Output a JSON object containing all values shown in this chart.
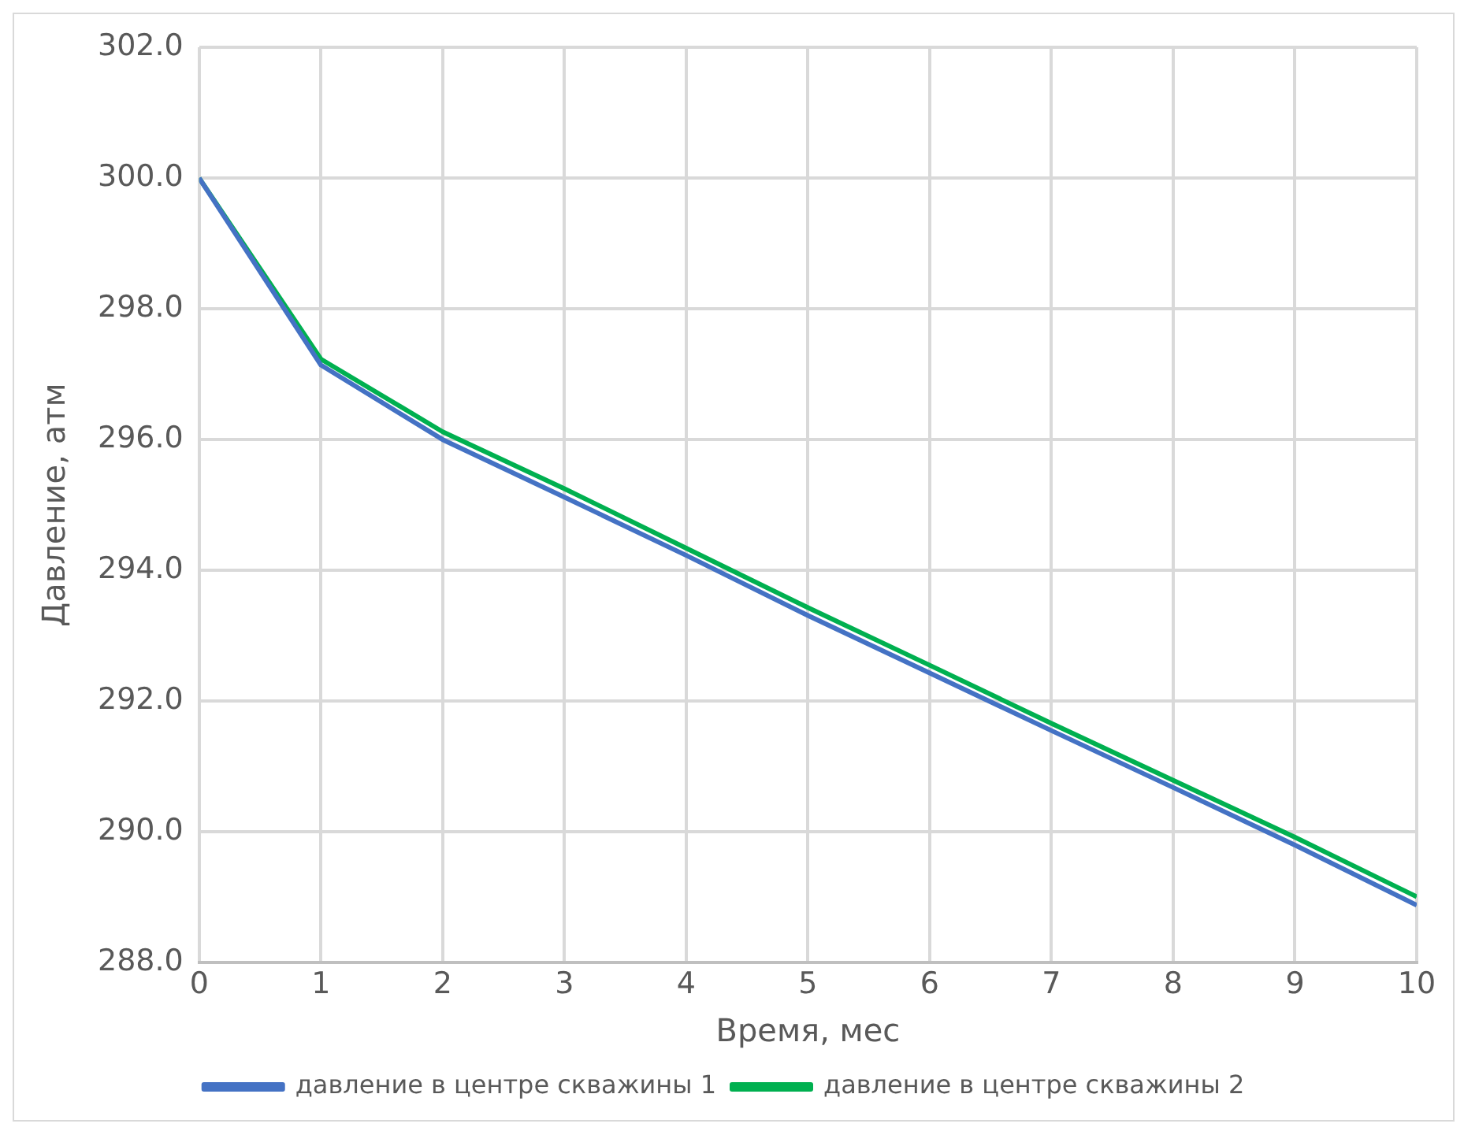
{
  "chart_data": {
    "type": "line",
    "xlabel": "Время, мес",
    "ylabel": "Давление, атм",
    "x": [
      0,
      1,
      2,
      3,
      4,
      5,
      6,
      7,
      8,
      9,
      10
    ],
    "series": [
      {
        "name": "давление в центре скважины 1",
        "color": "#4472c4",
        "values": [
          300.0,
          297.14,
          296.0,
          295.12,
          294.23,
          293.31,
          292.43,
          291.55,
          290.68,
          289.8,
          288.88
        ]
      },
      {
        "name": "давление в центре скважины 2",
        "color": "#00b050",
        "values": [
          300.0,
          297.23,
          296.12,
          295.25,
          294.34,
          293.43,
          292.55,
          291.66,
          290.79,
          289.92,
          289.01
        ]
      }
    ],
    "xlim": [
      0,
      10
    ],
    "xticks": [
      0,
      1,
      2,
      3,
      4,
      5,
      6,
      7,
      8,
      9,
      10
    ],
    "ylim": [
      288,
      302
    ],
    "yticks": [
      {
        "value": 288,
        "label": "288.0"
      },
      {
        "value": 290,
        "label": "290.0"
      },
      {
        "value": 292,
        "label": "292.0"
      },
      {
        "value": 294,
        "label": "294.0"
      },
      {
        "value": 296,
        "label": "296.0"
      },
      {
        "value": 298,
        "label": "298.0"
      },
      {
        "value": 300,
        "label": "300.0"
      },
      {
        "value": 302,
        "label": "302.0"
      }
    ],
    "grid": true,
    "legend": "bottom",
    "marker": "none",
    "line_style": "solid"
  }
}
